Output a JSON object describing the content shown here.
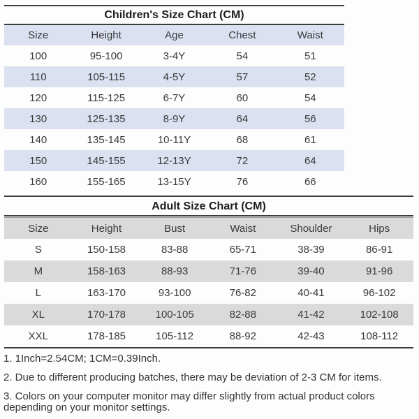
{
  "children_chart": {
    "title": "Children's Size Chart (CM)",
    "columns": [
      "Size",
      "Height",
      "Age",
      "Chest",
      "Waist"
    ],
    "rows": [
      [
        "100",
        "95-100",
        "3-4Y",
        "54",
        "51"
      ],
      [
        "110",
        "105-115",
        "4-5Y",
        "57",
        "52"
      ],
      [
        "120",
        "115-125",
        "6-7Y",
        "60",
        "54"
      ],
      [
        "130",
        "125-135",
        "8-9Y",
        "64",
        "56"
      ],
      [
        "140",
        "135-145",
        "10-11Y",
        "68",
        "61"
      ],
      [
        "150",
        "145-155",
        "12-13Y",
        "72",
        "64"
      ],
      [
        "160",
        "155-165",
        "13-15Y",
        "76",
        "66"
      ]
    ]
  },
  "adult_chart": {
    "title": "Adult Size Chart (CM)",
    "columns": [
      "Size",
      "Height",
      "Bust",
      "Waist",
      "Shoulder",
      "Hips"
    ],
    "rows": [
      [
        "S",
        "150-158",
        "83-88",
        "65-71",
        "38-39",
        "86-91"
      ],
      [
        "M",
        "158-163",
        "88-93",
        "71-76",
        "39-40",
        "91-96"
      ],
      [
        "L",
        "163-170",
        "93-100",
        "76-82",
        "40-41",
        "96-102"
      ],
      [
        "XL",
        "170-178",
        "100-105",
        "82-88",
        "41-42",
        "102-108"
      ],
      [
        "XXL",
        "178-185",
        "105-112",
        "88-92",
        "42-43",
        "108-112"
      ]
    ]
  },
  "notes": [
    "1. 1Inch=2.54CM; 1CM=0.39Inch.",
    "2. Due to different producing batches, there may be deviation of 2-3 CM for items.",
    "3. Colors on your computer monitor may differ slightly from actual product colors depending on your monitor settings."
  ],
  "colors": {
    "children_row_highlight": "#dbe1f1",
    "adult_row_highlight": "#dadada",
    "divider": "#3c3c3c"
  }
}
